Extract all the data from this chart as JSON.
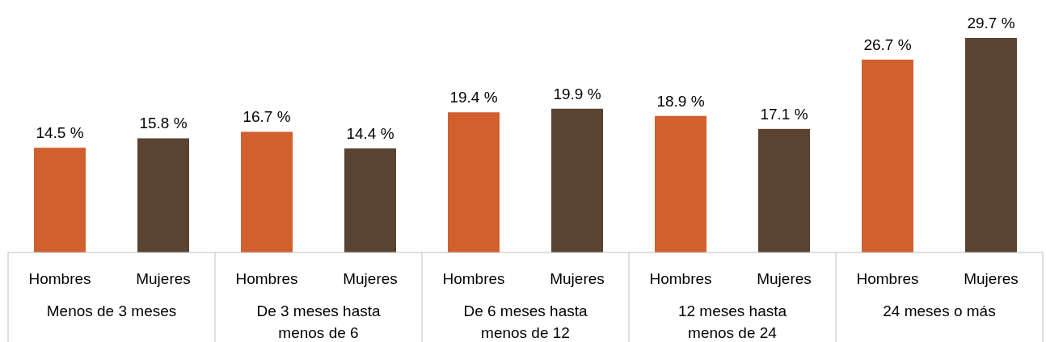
{
  "chart_data": {
    "type": "bar",
    "categories": [
      "Menos de 3 meses",
      "De 3 meses hasta menos de 6",
      "De 6 meses hasta menos de 12",
      "12 meses hasta menos de 24",
      "24 meses o más"
    ],
    "series": [
      {
        "name": "Hombres",
        "color": "#d2602f",
        "values": [
          14.5,
          16.7,
          19.4,
          18.9,
          26.7
        ],
        "value_labels": [
          "14.5 %",
          "16.7 %",
          "19.4 %",
          "18.9 %",
          "26.7 %"
        ]
      },
      {
        "name": "Mujeres",
        "color": "#5a4330",
        "values": [
          15.8,
          14.4,
          19.9,
          17.1,
          29.7
        ],
        "value_labels": [
          "15.8 %",
          "14.4 %",
          "19.9 %",
          "17.1 %",
          "29.7 %"
        ]
      }
    ]
  }
}
